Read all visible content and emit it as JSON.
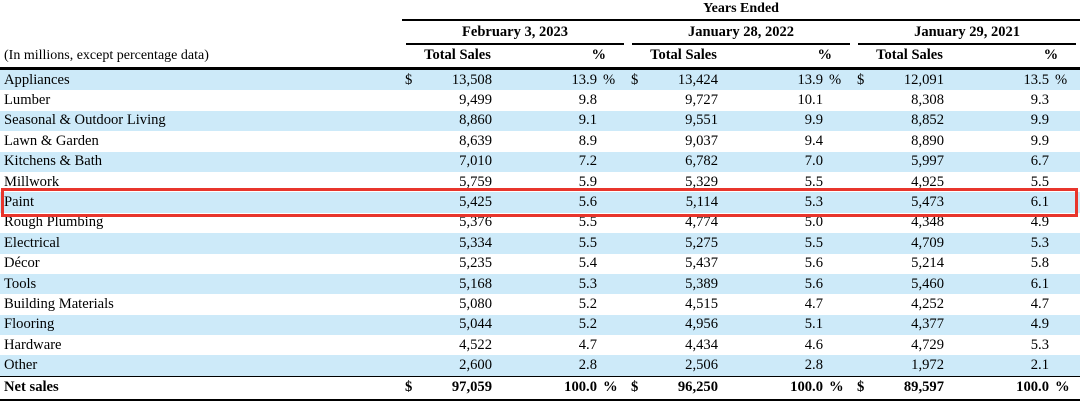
{
  "table": {
    "years_ended_label": "Years Ended",
    "note": "(In millions, except percentage data)",
    "currency_symbol": "$",
    "percent_symbol": "%",
    "periods": [
      {
        "label": "February 3, 2023",
        "total_sales_label": "Total Sales",
        "percent_label": "%"
      },
      {
        "label": "January 28, 2022",
        "total_sales_label": "Total Sales",
        "percent_label": "%"
      },
      {
        "label": "January 29, 2021",
        "total_sales_label": "Total Sales",
        "percent_label": "%"
      }
    ],
    "rows": [
      {
        "label": "Appliances",
        "sales": [
          "13,508",
          "13,424",
          "12,091"
        ],
        "pcts": [
          "13.9",
          "13.9",
          "13.5"
        ],
        "symbols": true
      },
      {
        "label": "Lumber",
        "sales": [
          "9,499",
          "9,727",
          "8,308"
        ],
        "pcts": [
          "9.8",
          "10.1",
          "9.3"
        ]
      },
      {
        "label": "Seasonal & Outdoor Living",
        "sales": [
          "8,860",
          "9,551",
          "8,852"
        ],
        "pcts": [
          "9.1",
          "9.9",
          "9.9"
        ]
      },
      {
        "label": "Lawn & Garden",
        "sales": [
          "8,639",
          "9,037",
          "8,890"
        ],
        "pcts": [
          "8.9",
          "9.4",
          "9.9"
        ]
      },
      {
        "label": "Kitchens & Bath",
        "sales": [
          "7,010",
          "6,782",
          "5,997"
        ],
        "pcts": [
          "7.2",
          "7.0",
          "6.7"
        ]
      },
      {
        "label": "Millwork",
        "sales": [
          "5,759",
          "5,329",
          "4,925"
        ],
        "pcts": [
          "5.9",
          "5.5",
          "5.5"
        ]
      },
      {
        "label": "Paint",
        "sales": [
          "5,425",
          "5,114",
          "5,473"
        ],
        "pcts": [
          "5.6",
          "5.3",
          "6.1"
        ],
        "highlighted": true
      },
      {
        "label": "Rough Plumbing",
        "sales": [
          "5,376",
          "4,774",
          "4,348"
        ],
        "pcts": [
          "5.5",
          "5.0",
          "4.9"
        ]
      },
      {
        "label": "Electrical",
        "sales": [
          "5,334",
          "5,275",
          "4,709"
        ],
        "pcts": [
          "5.5",
          "5.5",
          "5.3"
        ]
      },
      {
        "label": "Décor",
        "sales": [
          "5,235",
          "5,437",
          "5,214"
        ],
        "pcts": [
          "5.4",
          "5.6",
          "5.8"
        ]
      },
      {
        "label": "Tools",
        "sales": [
          "5,168",
          "5,389",
          "5,460"
        ],
        "pcts": [
          "5.3",
          "5.6",
          "6.1"
        ]
      },
      {
        "label": "Building Materials",
        "sales": [
          "5,080",
          "4,515",
          "4,252"
        ],
        "pcts": [
          "5.2",
          "4.7",
          "4.7"
        ]
      },
      {
        "label": "Flooring",
        "sales": [
          "5,044",
          "4,956",
          "4,377"
        ],
        "pcts": [
          "5.2",
          "5.1",
          "4.9"
        ]
      },
      {
        "label": "Hardware",
        "sales": [
          "4,522",
          "4,434",
          "4,729"
        ],
        "pcts": [
          "4.7",
          "4.6",
          "5.3"
        ]
      },
      {
        "label": "Other",
        "sales": [
          "2,600",
          "2,506",
          "1,972"
        ],
        "pcts": [
          "2.8",
          "2.8",
          "2.1"
        ]
      },
      {
        "label": "Net sales",
        "sales": [
          "97,059",
          "96,250",
          "89,597"
        ],
        "pcts": [
          "100.0",
          "100.0",
          "100.0"
        ],
        "symbols": true,
        "total": true
      }
    ]
  },
  "colors": {
    "row_stripe": "#cdeaf9",
    "highlight_border": "#e8352c"
  }
}
